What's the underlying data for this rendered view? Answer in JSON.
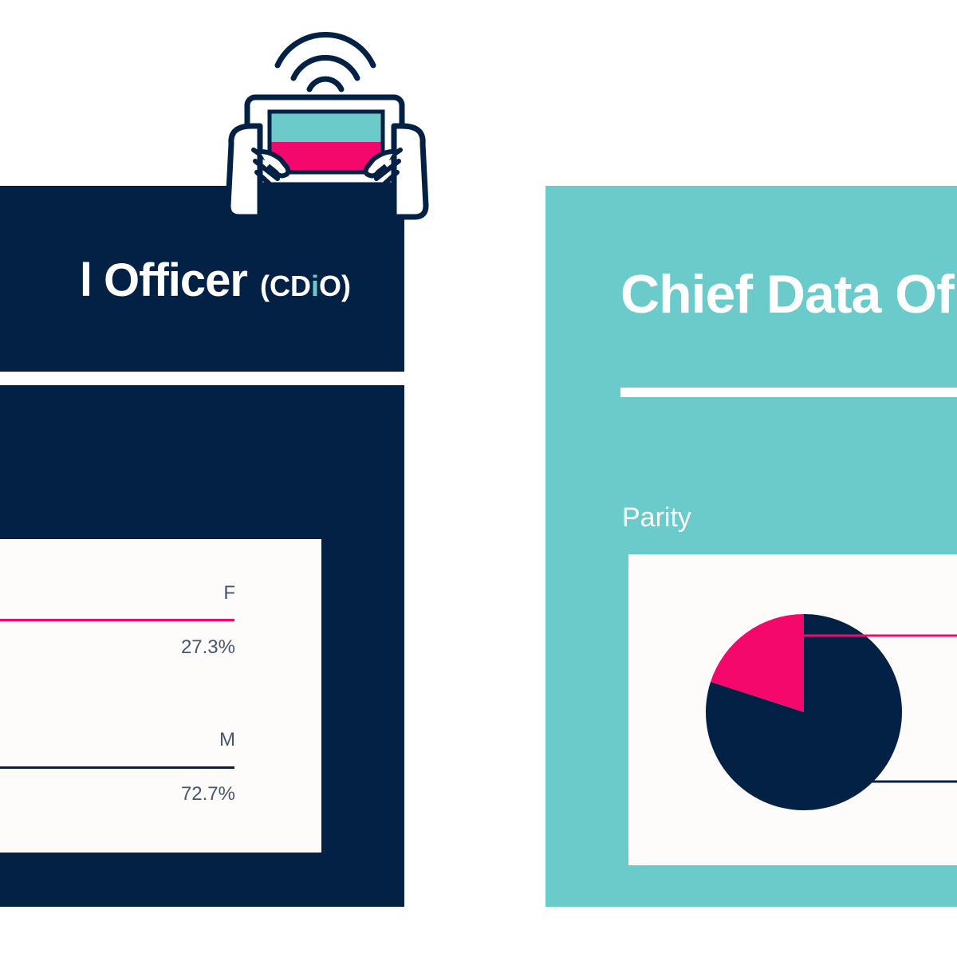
{
  "left_panel": {
    "title_main": "l Officer",
    "title_abbr_prefix": "(CD",
    "title_abbr_accent": "i",
    "title_abbr_suffix": "O)"
  },
  "right_panel": {
    "title": "Chief Data Of",
    "parity_label": "Parity"
  },
  "colors": {
    "navy": "#022145",
    "teal": "#6bcbcb",
    "pink": "#f4086b",
    "card": "#fdfcfa"
  },
  "icon": "tablet-signal-icon",
  "chart_data": [
    {
      "type": "bar",
      "categories": [
        "F",
        "M"
      ],
      "values": [
        27.3,
        72.7
      ],
      "value_labels": [
        "27.3%",
        "72.7%"
      ],
      "colors": [
        "#f4086b",
        "#022145"
      ]
    },
    {
      "type": "pie",
      "title": "Parity",
      "slices": [
        {
          "value": 20,
          "color": "#f4086b"
        },
        {
          "value": 80,
          "color": "#022145"
        }
      ]
    }
  ]
}
